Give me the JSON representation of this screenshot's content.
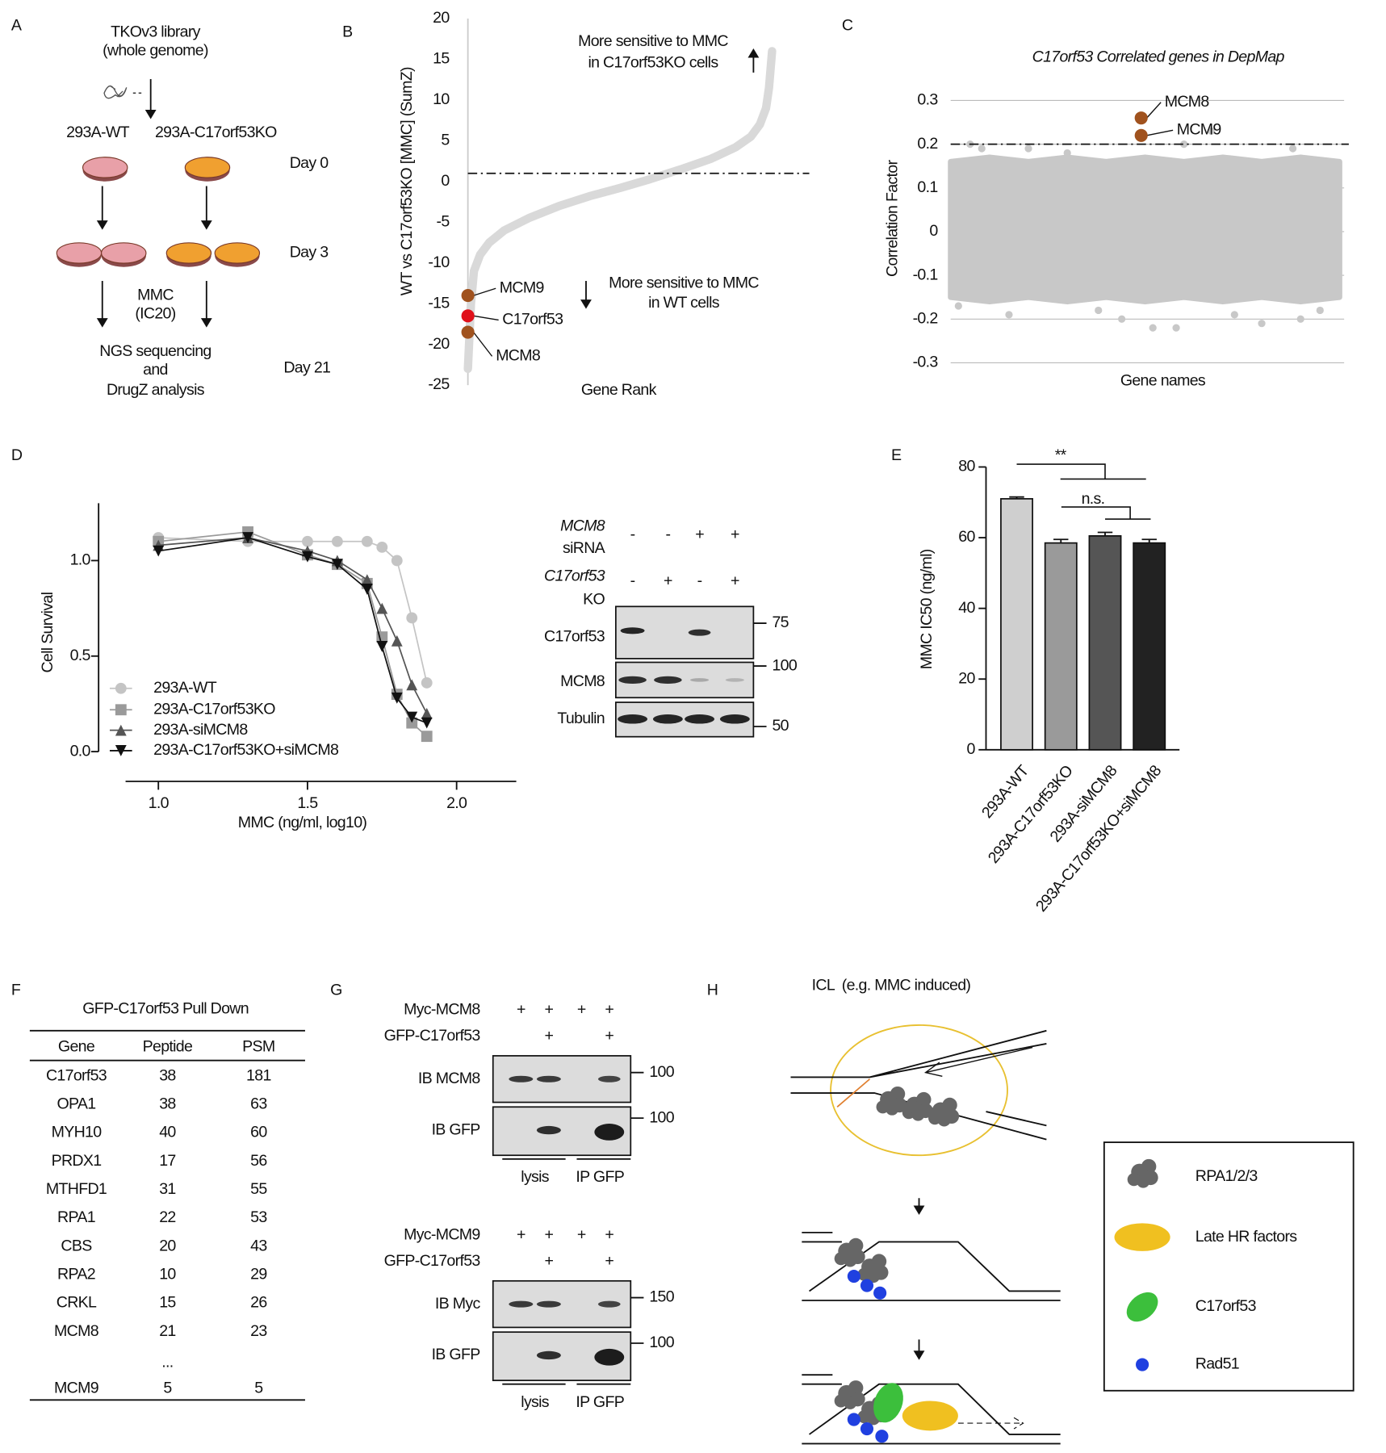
{
  "panel_labels": [
    "A",
    "B",
    "C",
    "D",
    "E",
    "F",
    "G",
    "H"
  ],
  "workflow": {
    "library": "TKOv3 library",
    "library_scope": "(whole genome)",
    "wt_line": "293A-WT",
    "ko_line": "293A-C17orf53KO",
    "day_0": "Day 0",
    "day_3": "Day 3",
    "treatment": "MMC",
    "treatment_dose": "(IC20)",
    "readout": [
      "NGS sequencing",
      "and",
      "DrugZ analysis"
    ],
    "day_21": "Day 21"
  },
  "chart_data": [
    {
      "type": "line",
      "y_label": "WT vs C17orf53KO [MMC] (SumZ)",
      "x_label": "Gene Rank",
      "xlim": [
        0,
        100
      ],
      "ylim": [
        -25,
        20
      ],
      "yticks": [
        20,
        15,
        10,
        5,
        0,
        -5,
        -10,
        -15,
        -20,
        -25
      ],
      "x": [
        0,
        1,
        2,
        4,
        7,
        12,
        20,
        30,
        40,
        50,
        60,
        70,
        80,
        88,
        93,
        96,
        98,
        99,
        100
      ],
      "values": [
        -23,
        -15,
        -11,
        -9,
        -7.5,
        -6,
        -4.5,
        -3,
        -1.8,
        -0.8,
        0.3,
        1.5,
        2.8,
        4.2,
        5.5,
        7,
        9,
        11.5,
        16
      ],
      "color": "#d9d9d9",
      "threshold": 1,
      "highlights": [
        {
          "label": "MCM9",
          "x": 0,
          "value": -14,
          "color": "#a0521e"
        },
        {
          "label": "C17orf53",
          "x": 0,
          "value": -16.5,
          "color": "#e0101a"
        },
        {
          "label": "MCM8",
          "x": 0,
          "value": -18.5,
          "color": "#a0521e"
        }
      ],
      "annotations": [
        "More sensitive to MMC",
        "in C17orf53KO cells",
        "More sensitive to MMC",
        "in WT cells"
      ]
    },
    {
      "type": "scatter",
      "title": "C17orf53 Correlated genes in DepMap",
      "y_label": "Correlation Factor",
      "x_label": "Gene names",
      "xlim": [
        0,
        100
      ],
      "ylim": [
        -0.3,
        0.3
      ],
      "yticks": [
        0.3,
        0.2,
        0.1,
        0,
        -0.1,
        -0.2,
        -0.3
      ],
      "grid": true,
      "threshold": 0.2,
      "color": "#c8c8c8",
      "envelope": {
        "x": [
          0,
          10,
          20,
          30,
          40,
          50,
          60,
          70,
          80,
          90,
          100
        ],
        "upper": [
          0.16,
          0.17,
          0.16,
          0.17,
          0.16,
          0.17,
          0.16,
          0.17,
          0.16,
          0.17,
          0.16
        ],
        "lower": [
          -0.15,
          -0.16,
          -0.15,
          -0.16,
          -0.15,
          -0.16,
          -0.15,
          -0.16,
          -0.15,
          -0.16,
          -0.15
        ]
      },
      "outliers": {
        "x": [
          5,
          8,
          20,
          30,
          44,
          52,
          60,
          67,
          80,
          88,
          95,
          2,
          15,
          38,
          58,
          73,
          90
        ],
        "values": [
          0.2,
          0.19,
          0.19,
          0.18,
          -0.2,
          -0.22,
          0.2,
          0.23,
          -0.21,
          0.19,
          -0.18,
          -0.17,
          -0.19,
          -0.18,
          -0.22,
          -0.19,
          -0.2
        ]
      },
      "highlights": [
        {
          "label": "MCM8",
          "x": 49,
          "value": 0.26,
          "color": "#a0521e"
        },
        {
          "label": "MCM9",
          "x": 49,
          "value": 0.22,
          "color": "#a0521e"
        }
      ]
    },
    {
      "type": "line",
      "y_label": "Cell Survival",
      "x_label": "MMC (ng/ml, log10)",
      "xlim": [
        0.89,
        2.2
      ],
      "xticks": [
        {
          "value": 1,
          "label": "1.0"
        },
        {
          "value": 1.5,
          "label": "1.5"
        },
        {
          "value": 2,
          "label": "2.0"
        }
      ],
      "ylim": [
        0,
        1.3
      ],
      "yticks": [
        {
          "value": 0,
          "label": "0.0"
        },
        {
          "value": 0.5,
          "label": "0.5"
        },
        {
          "value": 1,
          "label": "1.0"
        }
      ],
      "x": [
        1.0,
        1.3,
        1.5,
        1.6,
        1.7,
        1.75,
        1.8,
        1.85,
        1.9
      ],
      "series": [
        {
          "name": "293A-WT",
          "color": "#c4c4c4",
          "marker": "circle",
          "values": [
            1.12,
            1.1,
            1.1,
            1.1,
            1.1,
            1.07,
            1.0,
            0.7,
            0.36
          ]
        },
        {
          "name": "293A-C17orf53KO",
          "color": "#9a9a9a",
          "marker": "square",
          "values": [
            1.1,
            1.15,
            1.03,
            0.98,
            0.88,
            0.6,
            0.3,
            0.15,
            0.08
          ]
        },
        {
          "name": "293A-siMCM8",
          "color": "#555555",
          "marker": "triangle",
          "values": [
            1.08,
            1.12,
            1.05,
            1.0,
            0.9,
            0.75,
            0.58,
            0.35,
            0.2
          ]
        },
        {
          "name": "293A-C17orf53KO+siMCM8",
          "color": "#111111",
          "marker": "down-triangle",
          "values": [
            1.05,
            1.12,
            1.02,
            0.98,
            0.85,
            0.55,
            0.28,
            0.18,
            0.15
          ]
        }
      ]
    },
    {
      "type": "bar",
      "y_label": "MMC IC50 (ng/ml)",
      "categories": [
        "293A-WT",
        "293A-C17orf53KO",
        "293A-siMCM8",
        "293A-C17orf53KO+siMCM8"
      ],
      "values": [
        71,
        58.5,
        60.5,
        58.5
      ],
      "errors": [
        0.5,
        1,
        1,
        1
      ],
      "colors": [
        "#cfcfcf",
        "#9a9a9a",
        "#555555",
        "#222222"
      ],
      "ylim": [
        0,
        80
      ],
      "yticks": [
        0,
        20,
        40,
        60,
        80
      ],
      "annotations": [
        "**",
        "n.s."
      ]
    }
  ],
  "western": {
    "rows": [
      {
        "label": "MCM8",
        "sub": "siRNA",
        "signs": [
          "-",
          "-",
          "+",
          "+"
        ]
      },
      {
        "label": "C17orf53",
        "sub": "KO",
        "signs": [
          "-",
          "+",
          "-",
          "+"
        ]
      }
    ],
    "blots": [
      {
        "label": "C17orf53",
        "marker": 75
      },
      {
        "label": "MCM8",
        "marker": 100
      },
      {
        "label": "Tubulin",
        "marker": 50
      }
    ]
  },
  "pulldown": {
    "title": "GFP-C17orf53 Pull Down",
    "columns": [
      "Gene",
      "Peptide",
      "PSM"
    ],
    "rows": [
      [
        "C17orf53",
        38,
        181
      ],
      [
        "OPA1",
        38,
        63
      ],
      [
        "MYH10",
        40,
        60
      ],
      [
        "PRDX1",
        17,
        56
      ],
      [
        "MTHFD1",
        31,
        55
      ],
      [
        "RPA1",
        22,
        53
      ],
      [
        "CBS",
        20,
        43
      ],
      [
        "RPA2",
        10,
        29
      ],
      [
        "CRKL",
        15,
        26
      ],
      [
        "MCM8",
        21,
        23
      ]
    ],
    "row_colors": [
      "#d0141e",
      "#111111",
      "#111111",
      "#111111",
      "#111111",
      "#2e9a3c",
      "#111111",
      "#2e9a3c",
      "#111111",
      "#2e9a3c"
    ],
    "ellipsis": "...",
    "last_row": [
      "MCM9",
      5,
      5
    ],
    "last_row_color": "#2e9a3c"
  },
  "coip": [
    {
      "rows": [
        {
          "label": "Myc-MCM8",
          "signs": [
            "+",
            "+",
            "+",
            "+"
          ]
        },
        {
          "label": "GFP-C17orf53",
          "signs": [
            null,
            "+",
            null,
            "+"
          ]
        }
      ],
      "blots": [
        {
          "label": "IB MCM8",
          "marker": 100
        },
        {
          "label": "IB GFP",
          "marker": 100
        }
      ],
      "groups": [
        "lysis",
        "IP GFP"
      ]
    },
    {
      "rows": [
        {
          "label": "Myc-MCM9",
          "signs": [
            "+",
            "+",
            "+",
            "+"
          ]
        },
        {
          "label": "GFP-C17orf53",
          "signs": [
            null,
            "+",
            null,
            "+"
          ]
        }
      ],
      "blots": [
        {
          "label": "IB Myc",
          "marker": 150
        },
        {
          "label": "IB GFP",
          "marker": 100
        }
      ],
      "groups": [
        "lysis",
        "IP GFP"
      ]
    }
  ],
  "model": {
    "title": "ICL  (e.g. MMC induced)",
    "legend": [
      "RPA1/2/3",
      "Late HR factors",
      "C17orf53",
      "Rad51"
    ]
  }
}
